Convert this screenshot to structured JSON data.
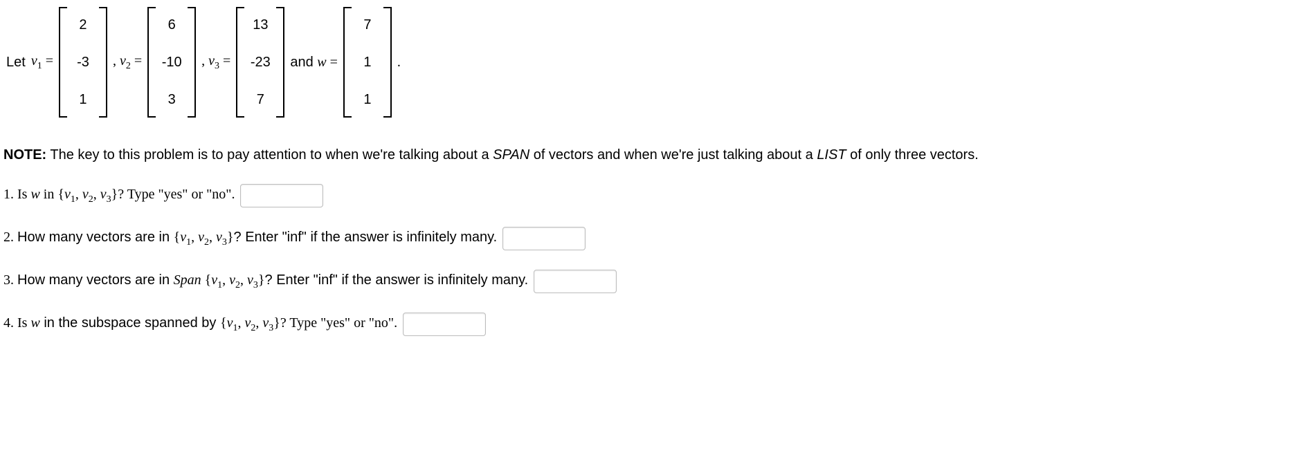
{
  "intro": {
    "let": "Let ",
    "vectors": {
      "v1": {
        "label_var": "v",
        "label_sub": "1",
        "entries": [
          "2",
          "-3",
          "1"
        ]
      },
      "v2": {
        "label_var": "v",
        "label_sub": "2",
        "entries": [
          "6",
          "-10",
          "3"
        ]
      },
      "v3": {
        "label_var": "v",
        "label_sub": "3",
        "entries": [
          "13",
          "-23",
          "7"
        ]
      },
      "w": {
        "label_var": "w",
        "label_sub": "",
        "entries": [
          "7",
          "1",
          "1"
        ]
      }
    },
    "eq": " = ",
    "comma": ", ",
    "and": " and ",
    "period": "."
  },
  "note": {
    "bold": "NOTE:",
    "text_a": " The key to this problem is to pay attention to when we're talking about a ",
    "span": "SPAN",
    "text_b": " of vectors and when we're just talking about a ",
    "list": "LIST",
    "text_c": " of only three vectors."
  },
  "q1": {
    "num": "1. ",
    "a": "Is ",
    "w": "w",
    "b": " in ",
    "set_open": "{",
    "v1": "v",
    "s1": "1",
    "v2": "v",
    "s2": "2",
    "v3": "v",
    "s3": "3",
    "set_close": "}",
    "c": "? Type \"yes\" or \"no\"."
  },
  "q2": {
    "num": "2. ",
    "a": "How many vectors are in ",
    "set_open": "{",
    "v1": "v",
    "s1": "1",
    "v2": "v",
    "s2": "2",
    "v3": "v",
    "s3": "3",
    "set_close": "}",
    "b": "? Enter \"inf\" if the answer is infinitely many."
  },
  "q3": {
    "num": "3. ",
    "a": "How many vectors are in ",
    "span": "Span",
    "set_open": " {",
    "v1": "v",
    "s1": "1",
    "v2": "v",
    "s2": "2",
    "v3": "v",
    "s3": "3",
    "set_close": "}",
    "b": "? Enter \"inf\" if the answer is infinitely many."
  },
  "q4": {
    "num": "4. ",
    "a": "Is ",
    "w": "w",
    "b": " in the subspace spanned by ",
    "set_open": "{",
    "v1": "v",
    "s1": "1",
    "v2": "v",
    "s2": "2",
    "v3": "v",
    "s3": "3",
    "set_close": "}",
    "c": "? Type \"yes\" or \"no\"."
  }
}
